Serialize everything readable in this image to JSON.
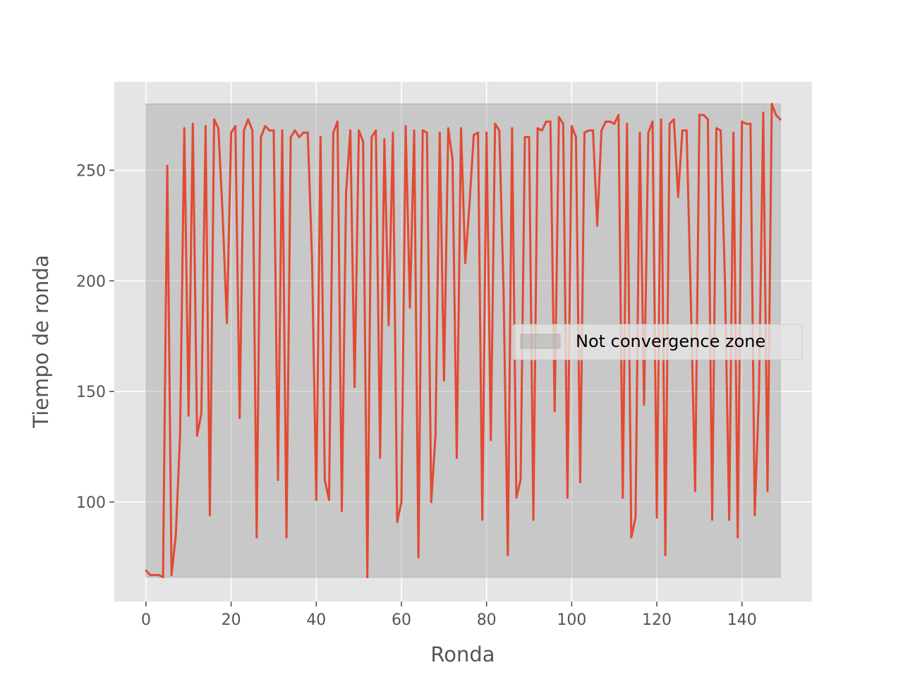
{
  "chart_data": {
    "type": "line",
    "title": "",
    "xlabel": "Ronda",
    "ylabel": "Tiempo de ronda",
    "xlim": [
      -7.45,
      156.45
    ],
    "ylim": [
      55,
      290
    ],
    "xticks": [
      0,
      20,
      40,
      60,
      80,
      100,
      120,
      140
    ],
    "yticks": [
      100,
      150,
      200,
      250
    ],
    "grid": true,
    "style": "ggplot",
    "legend": {
      "position": "center-right",
      "entries": [
        "Not convergence zone"
      ]
    },
    "shaded_region": {
      "label": "Not convergence zone",
      "x": [
        0,
        149
      ],
      "y": [
        66,
        280
      ],
      "color": "#9e9e9e"
    },
    "series": [
      {
        "color": "#e24a33",
        "x": [
          0,
          1,
          2,
          3,
          4,
          5,
          6,
          7,
          8,
          9,
          10,
          11,
          12,
          13,
          14,
          15,
          16,
          17,
          18,
          19,
          20,
          21,
          22,
          23,
          24,
          25,
          26,
          27,
          28,
          29,
          30,
          31,
          32,
          33,
          34,
          35,
          36,
          37,
          38,
          39,
          40,
          41,
          42,
          43,
          44,
          45,
          46,
          47,
          48,
          49,
          50,
          51,
          52,
          53,
          54,
          55,
          56,
          57,
          58,
          59,
          60,
          61,
          62,
          63,
          64,
          65,
          66,
          67,
          68,
          69,
          70,
          71,
          72,
          73,
          74,
          75,
          76,
          77,
          78,
          79,
          80,
          81,
          82,
          83,
          84,
          85,
          86,
          87,
          88,
          89,
          90,
          91,
          92,
          93,
          94,
          95,
          96,
          97,
          98,
          99,
          100,
          101,
          102,
          103,
          104,
          105,
          106,
          107,
          108,
          109,
          110,
          111,
          112,
          113,
          114,
          115,
          116,
          117,
          118,
          119,
          120,
          121,
          122,
          123,
          124,
          125,
          126,
          127,
          128,
          129,
          130,
          131,
          132,
          133,
          134,
          135,
          136,
          137,
          138,
          139,
          140,
          141,
          142,
          143,
          144,
          145,
          146,
          147,
          148,
          149
        ],
        "values": [
          69,
          67,
          67,
          67,
          66,
          252,
          67,
          85,
          130,
          269,
          139,
          271,
          130,
          140,
          270,
          94,
          273,
          269,
          230,
          181,
          267,
          270,
          138,
          268,
          273,
          268,
          84,
          265,
          270,
          268,
          268,
          110,
          268,
          84,
          265,
          268,
          265,
          267,
          267,
          210,
          101,
          265,
          110,
          101,
          267,
          272,
          96,
          240,
          268,
          152,
          268,
          263,
          66,
          265,
          268,
          120,
          264,
          180,
          267,
          91,
          100,
          270,
          188,
          268,
          75,
          268,
          267,
          100,
          130,
          267,
          155,
          269,
          255,
          120,
          269,
          208,
          235,
          266,
          267,
          92,
          267,
          128,
          271,
          268,
          195,
          76,
          269,
          102,
          110,
          265,
          265,
          92,
          269,
          268,
          272,
          272,
          141,
          274,
          271,
          102,
          270,
          265,
          109,
          267,
          268,
          268,
          225,
          268,
          272,
          272,
          271,
          275,
          102,
          271,
          84,
          93,
          267,
          144,
          267,
          272,
          93,
          273,
          76,
          271,
          273,
          238,
          268,
          268,
          190,
          105,
          275,
          275,
          273,
          92,
          269,
          268,
          200,
          92,
          267,
          84,
          272,
          271,
          271,
          94,
          150,
          276,
          105,
          280,
          275,
          273
        ]
      }
    ]
  }
}
